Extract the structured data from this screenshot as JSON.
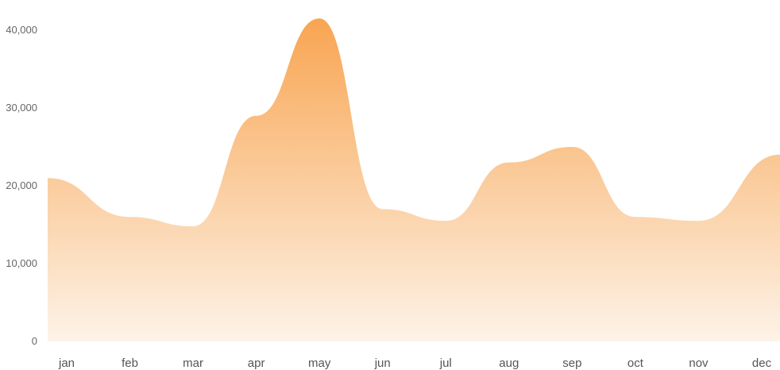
{
  "chart_data": {
    "type": "area",
    "title": "",
    "xlabel": "",
    "ylabel": "",
    "categories": [
      "jan",
      "feb",
      "mar",
      "apr",
      "may",
      "jun",
      "jul",
      "aug",
      "sep",
      "oct",
      "nov",
      "dec"
    ],
    "series": [
      {
        "values": [
          21000,
          16000,
          14800,
          29000,
          41500,
          17000,
          15500,
          23000,
          25000,
          16000,
          15500,
          24000
        ]
      }
    ],
    "y_ticks": [
      0,
      10000,
      20000,
      30000,
      40000
    ],
    "y_tick_labels": [
      "0",
      "10,000",
      "20,000",
      "30,000",
      "40,000"
    ],
    "ylim": [
      0,
      40000
    ],
    "grid": false,
    "legend": "none",
    "fill_color_top": "#F8A552",
    "fill_color_bottom": "#FDF3E8"
  }
}
